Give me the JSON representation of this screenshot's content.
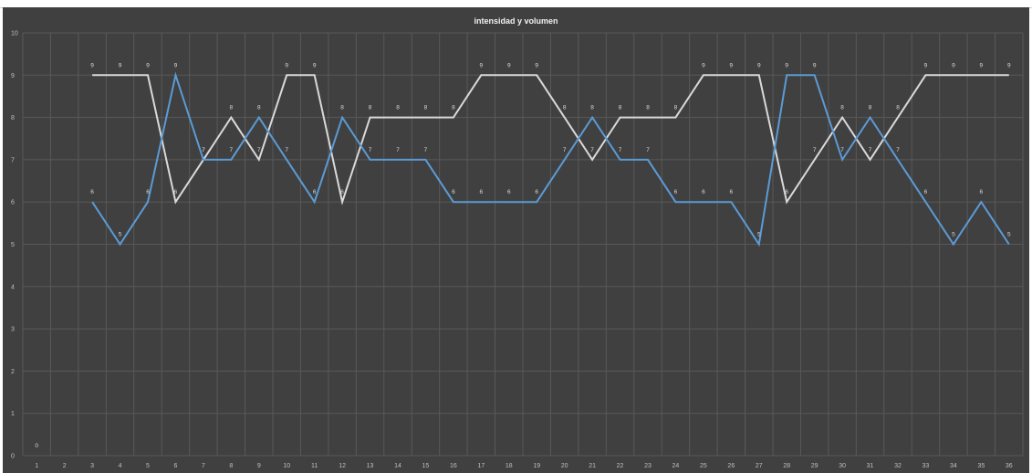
{
  "chart_data": {
    "type": "line",
    "title": "intensidad y volumen",
    "xlabel": "",
    "ylabel": "",
    "categories": [
      "1",
      "2",
      "3",
      "4",
      "5",
      "6",
      "7",
      "8",
      "9",
      "10",
      "11",
      "12",
      "13",
      "14",
      "15",
      "16",
      "17",
      "18",
      "19",
      "20",
      "21",
      "22",
      "23",
      "24",
      "25",
      "26",
      "27",
      "28",
      "29",
      "30",
      "31",
      "32",
      "33",
      "34",
      "35",
      "36"
    ],
    "ylim": [
      0,
      10
    ],
    "yticks": [
      "0",
      "1",
      "2",
      "3",
      "4",
      "5",
      "6",
      "7",
      "8",
      "9",
      "10"
    ],
    "grid": true,
    "legend": "none",
    "series": [
      {
        "color": "#5b9bd5",
        "values": [
          0,
          null,
          6,
          5,
          6,
          9,
          7,
          7,
          8,
          7,
          6,
          8,
          7,
          7,
          7,
          6,
          6,
          6,
          6,
          7,
          8,
          7,
          7,
          6,
          6,
          6,
          5,
          9,
          9,
          7,
          8,
          7,
          6,
          5,
          6,
          5
        ]
      },
      {
        "color": "#d9d9d9",
        "values": [
          null,
          null,
          9,
          9,
          9,
          6,
          7,
          8,
          7,
          9,
          9,
          6,
          8,
          8,
          8,
          8,
          9,
          9,
          9,
          8,
          7,
          8,
          8,
          8,
          9,
          9,
          9,
          6,
          7,
          8,
          7,
          8,
          9,
          9,
          9,
          9
        ]
      }
    ]
  }
}
